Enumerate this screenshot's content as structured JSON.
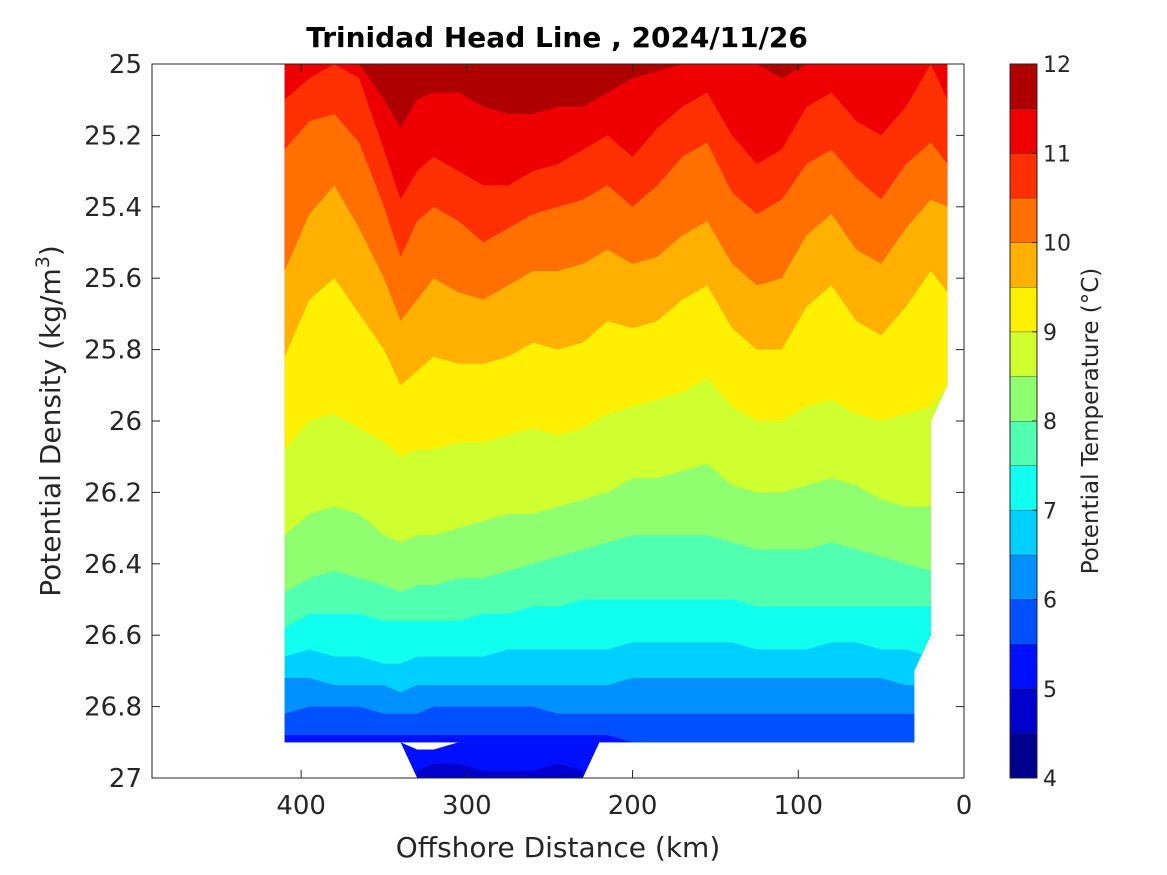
{
  "chart_data": {
    "type": "contour",
    "title": "Trinidad Head Line , 2024/11/26",
    "xlabel": "Offshore Distance (km)",
    "ylabel": "Potential Density (kg/m",
    "ylabel_sup": "3",
    "ylabel_close": ")",
    "colorbar_label": "Potential Temperature (°C)",
    "x_axis": {
      "range": [
        490,
        0
      ],
      "ticks": [
        "400",
        "300",
        "200",
        "100",
        "0"
      ],
      "tick_values": [
        400,
        300,
        200,
        100,
        0
      ]
    },
    "y_axis": {
      "range": [
        25,
        27
      ],
      "ticks": [
        "25",
        "25.2",
        "25.4",
        "25.6",
        "25.8",
        "26",
        "26.2",
        "26.4",
        "26.6",
        "26.8",
        "27"
      ],
      "tick_values": [
        25,
        25.2,
        25.4,
        25.6,
        25.8,
        26,
        26.2,
        26.4,
        26.6,
        26.8,
        27
      ]
    },
    "colorbar": {
      "range": [
        4,
        12
      ],
      "ticks": [
        "4",
        "5",
        "6",
        "7",
        "8",
        "9",
        "10",
        "11",
        "12"
      ],
      "tick_values": [
        4,
        5,
        6,
        7,
        8,
        9,
        10,
        11,
        12
      ],
      "levels": [
        4,
        4.5,
        5,
        5.5,
        6,
        6.5,
        7,
        7.5,
        8,
        8.5,
        9,
        9.5,
        10,
        10.5,
        11,
        11.5,
        12
      ],
      "colors": [
        "#00008f",
        "#0000cc",
        "#0010ff",
        "#0050ff",
        "#0090ff",
        "#00d0ff",
        "#10ffef",
        "#50ffaf",
        "#90ff6f",
        "#d0ff2f",
        "#ffef00",
        "#ffb000",
        "#ff7000",
        "#ff3000",
        "#ef0000",
        "#af0000"
      ]
    },
    "stations_x": [
      410,
      395,
      380,
      365,
      350,
      340,
      330,
      320,
      305,
      290,
      275,
      260,
      245,
      230,
      215,
      200,
      185,
      170,
      155,
      140,
      125,
      110,
      95,
      80,
      65,
      50,
      35,
      20,
      10
    ],
    "isotherms": [
      {
        "t": 11.5,
        "y": [
          25.0,
          25.0,
          25.0,
          25.0,
          25.1,
          25.18,
          25.1,
          25.08,
          25.08,
          25.12,
          25.14,
          25.14,
          25.12,
          25.12,
          25.08,
          25.04,
          25.02,
          25.0,
          25.0,
          25.0,
          25.0,
          25.04,
          25.0,
          25.0,
          25.0,
          25.0,
          25.0,
          25.0,
          25.0
        ]
      },
      {
        "t": 11.0,
        "y": [
          25.1,
          25.04,
          25.0,
          25.04,
          25.24,
          25.38,
          25.3,
          25.26,
          25.3,
          25.34,
          25.34,
          25.3,
          25.28,
          25.24,
          25.2,
          25.26,
          25.18,
          25.12,
          25.08,
          25.2,
          25.28,
          25.24,
          25.12,
          25.08,
          25.16,
          25.2,
          25.12,
          25.0,
          25.1
        ]
      },
      {
        "t": 10.5,
        "y": [
          25.24,
          25.16,
          25.14,
          25.22,
          25.4,
          25.54,
          25.44,
          25.4,
          25.44,
          25.5,
          25.46,
          25.42,
          25.4,
          25.38,
          25.34,
          25.4,
          25.34,
          25.26,
          25.22,
          25.36,
          25.42,
          25.38,
          25.28,
          25.24,
          25.32,
          25.38,
          25.28,
          25.22,
          25.28
        ]
      },
      {
        "t": 10.0,
        "y": [
          25.58,
          25.42,
          25.34,
          25.46,
          25.6,
          25.72,
          25.66,
          25.6,
          25.64,
          25.66,
          25.62,
          25.58,
          25.58,
          25.56,
          25.52,
          25.56,
          25.54,
          25.48,
          25.44,
          25.56,
          25.62,
          25.6,
          25.48,
          25.42,
          25.52,
          25.56,
          25.46,
          25.38,
          25.4
        ]
      },
      {
        "t": 9.5,
        "y": [
          25.82,
          25.66,
          25.6,
          25.7,
          25.8,
          25.9,
          25.86,
          25.82,
          25.84,
          25.84,
          25.82,
          25.78,
          25.8,
          25.78,
          25.72,
          25.74,
          25.72,
          25.66,
          25.62,
          25.74,
          25.8,
          25.8,
          25.68,
          25.62,
          25.72,
          25.76,
          25.68,
          25.58,
          25.64
        ]
      },
      {
        "t": 9.0,
        "y": [
          26.08,
          26.0,
          25.98,
          26.02,
          26.06,
          26.1,
          26.08,
          26.08,
          26.06,
          26.06,
          26.04,
          26.02,
          26.04,
          26.02,
          25.98,
          25.96,
          25.94,
          25.92,
          25.88,
          25.96,
          26.0,
          26.0,
          25.96,
          25.94,
          25.98,
          26.0,
          25.98,
          25.96,
          25.9
        ]
      },
      {
        "t": 8.5,
        "y": [
          26.32,
          26.26,
          26.24,
          26.26,
          26.32,
          26.34,
          26.32,
          26.32,
          26.3,
          26.28,
          26.26,
          26.26,
          26.24,
          26.22,
          26.2,
          26.16,
          26.16,
          26.14,
          26.12,
          26.18,
          26.2,
          26.2,
          26.18,
          26.16,
          26.18,
          26.22,
          26.24,
          26.24,
          26.24
        ]
      },
      {
        "t": 8.0,
        "y": [
          26.48,
          26.44,
          26.42,
          26.44,
          26.46,
          26.48,
          26.46,
          26.46,
          26.44,
          26.44,
          26.42,
          26.4,
          26.38,
          26.36,
          26.34,
          26.32,
          26.32,
          26.32,
          26.32,
          26.34,
          26.36,
          26.36,
          26.36,
          26.34,
          26.36,
          26.38,
          26.4,
          26.42,
          26.42
        ]
      },
      {
        "t": 7.5,
        "y": [
          26.58,
          26.54,
          26.54,
          26.54,
          26.56,
          26.56,
          26.56,
          26.56,
          26.56,
          26.54,
          26.54,
          26.52,
          26.52,
          26.5,
          26.5,
          26.5,
          26.5,
          26.5,
          26.5,
          26.5,
          26.52,
          26.52,
          26.52,
          26.52,
          26.52,
          26.52,
          26.52,
          26.52,
          26.54
        ]
      },
      {
        "t": 7.0,
        "y": [
          26.66,
          26.64,
          26.66,
          26.66,
          26.68,
          26.68,
          26.66,
          26.66,
          26.66,
          26.66,
          26.64,
          26.64,
          26.64,
          26.64,
          26.64,
          26.62,
          26.62,
          26.62,
          26.62,
          26.62,
          26.64,
          26.64,
          26.64,
          26.62,
          26.62,
          26.64,
          26.64,
          26.66,
          26.66
        ]
      },
      {
        "t": 6.5,
        "y": [
          26.72,
          26.72,
          26.74,
          26.74,
          26.74,
          26.76,
          26.74,
          26.74,
          26.74,
          26.74,
          26.74,
          26.74,
          26.74,
          26.74,
          26.74,
          26.72,
          26.72,
          26.72,
          26.72,
          26.72,
          26.72,
          26.72,
          26.72,
          26.72,
          26.72,
          26.72,
          26.74,
          26.74,
          26.74
        ]
      },
      {
        "t": 6.0,
        "y": [
          26.82,
          26.8,
          26.8,
          26.8,
          26.82,
          26.82,
          26.82,
          26.8,
          26.8,
          26.8,
          26.8,
          26.8,
          26.82,
          26.82,
          26.82,
          26.82,
          26.82,
          26.82,
          26.82,
          26.82,
          26.82,
          26.82,
          26.82,
          26.82,
          26.82,
          26.82,
          26.82,
          26.82,
          26.82
        ]
      },
      {
        "t": 5.5,
        "y": [
          26.88,
          26.88,
          26.88,
          26.88,
          26.88,
          26.88,
          26.88,
          26.88,
          26.88,
          26.88,
          26.88,
          26.88,
          26.88,
          26.88,
          26.88,
          26.9,
          26.9,
          26.9,
          26.9,
          26.9,
          26.9,
          26.9,
          26.9,
          26.9,
          26.9,
          26.9,
          26.9,
          26.9,
          26.9
        ]
      }
    ],
    "deep_patch": {
      "t_low": 5.0,
      "x": [
        340,
        330,
        320,
        305,
        290,
        275,
        260,
        245,
        230,
        220
      ],
      "top": [
        26.9,
        26.92,
        26.92,
        26.9,
        26.9,
        26.9,
        26.9,
        26.9,
        26.9,
        26.9
      ],
      "mid": [
        26.9,
        26.98,
        26.96,
        26.96,
        26.98,
        26.98,
        26.98,
        26.96,
        26.98,
        26.9
      ]
    },
    "data_bottom": {
      "x": [
        410,
        30
      ],
      "y": 26.9
    },
    "data_right_edge": [
      [
        10,
        25.0
      ],
      [
        10,
        25.9
      ],
      [
        20,
        26.0
      ],
      [
        20,
        26.6
      ],
      [
        30,
        26.7
      ],
      [
        30,
        26.9
      ]
    ]
  }
}
